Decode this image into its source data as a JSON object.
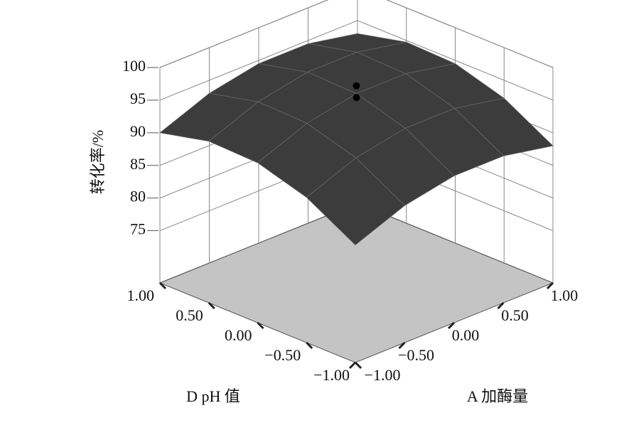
{
  "chart_data": {
    "type": "surface",
    "zlabel": "转化率/%",
    "xlabel": "A 加酶量",
    "ylabel": "D pH 值",
    "x": [
      -1,
      -0.5,
      0,
      0.5,
      1
    ],
    "y": [
      -1,
      -0.5,
      0,
      0.5,
      1
    ],
    "z": [
      [
        85,
        88,
        89.5,
        89.5,
        88
      ],
      [
        89.25,
        92.25,
        93.75,
        93.75,
        92.25
      ],
      [
        91.5,
        94.5,
        96,
        96,
        94.5
      ],
      [
        91.75,
        94.75,
        96.25,
        96.25,
        94.75
      ],
      [
        90,
        93,
        94.5,
        94.5,
        93
      ]
    ],
    "points": {
      "x": [
        0,
        0
      ],
      "y": [
        0,
        0
      ],
      "z": [
        97.2,
        95.4
      ]
    },
    "xlim": [
      -1,
      1
    ],
    "ylim": [
      -1,
      1
    ],
    "zlim": [
      67,
      100
    ],
    "xticks": [
      {
        "value": -1,
        "label": "−1.00"
      },
      {
        "value": -0.5,
        "label": "−0.50"
      },
      {
        "value": 0,
        "label": "0.00"
      },
      {
        "value": 0.5,
        "label": "0.50"
      },
      {
        "value": 1,
        "label": "1.00"
      }
    ],
    "yticks": [
      {
        "value": -1,
        "label": "−1.00"
      },
      {
        "value": -0.5,
        "label": "−0.50"
      },
      {
        "value": 0,
        "label": "0.00"
      },
      {
        "value": 0.5,
        "label": "0.50"
      },
      {
        "value": 1,
        "label": "1.00"
      }
    ],
    "zticks": [
      75,
      80,
      85,
      90,
      95,
      100
    ],
    "surface_color": "#3c3c3c",
    "floor_color": "#c4c4c4",
    "grid": true
  }
}
